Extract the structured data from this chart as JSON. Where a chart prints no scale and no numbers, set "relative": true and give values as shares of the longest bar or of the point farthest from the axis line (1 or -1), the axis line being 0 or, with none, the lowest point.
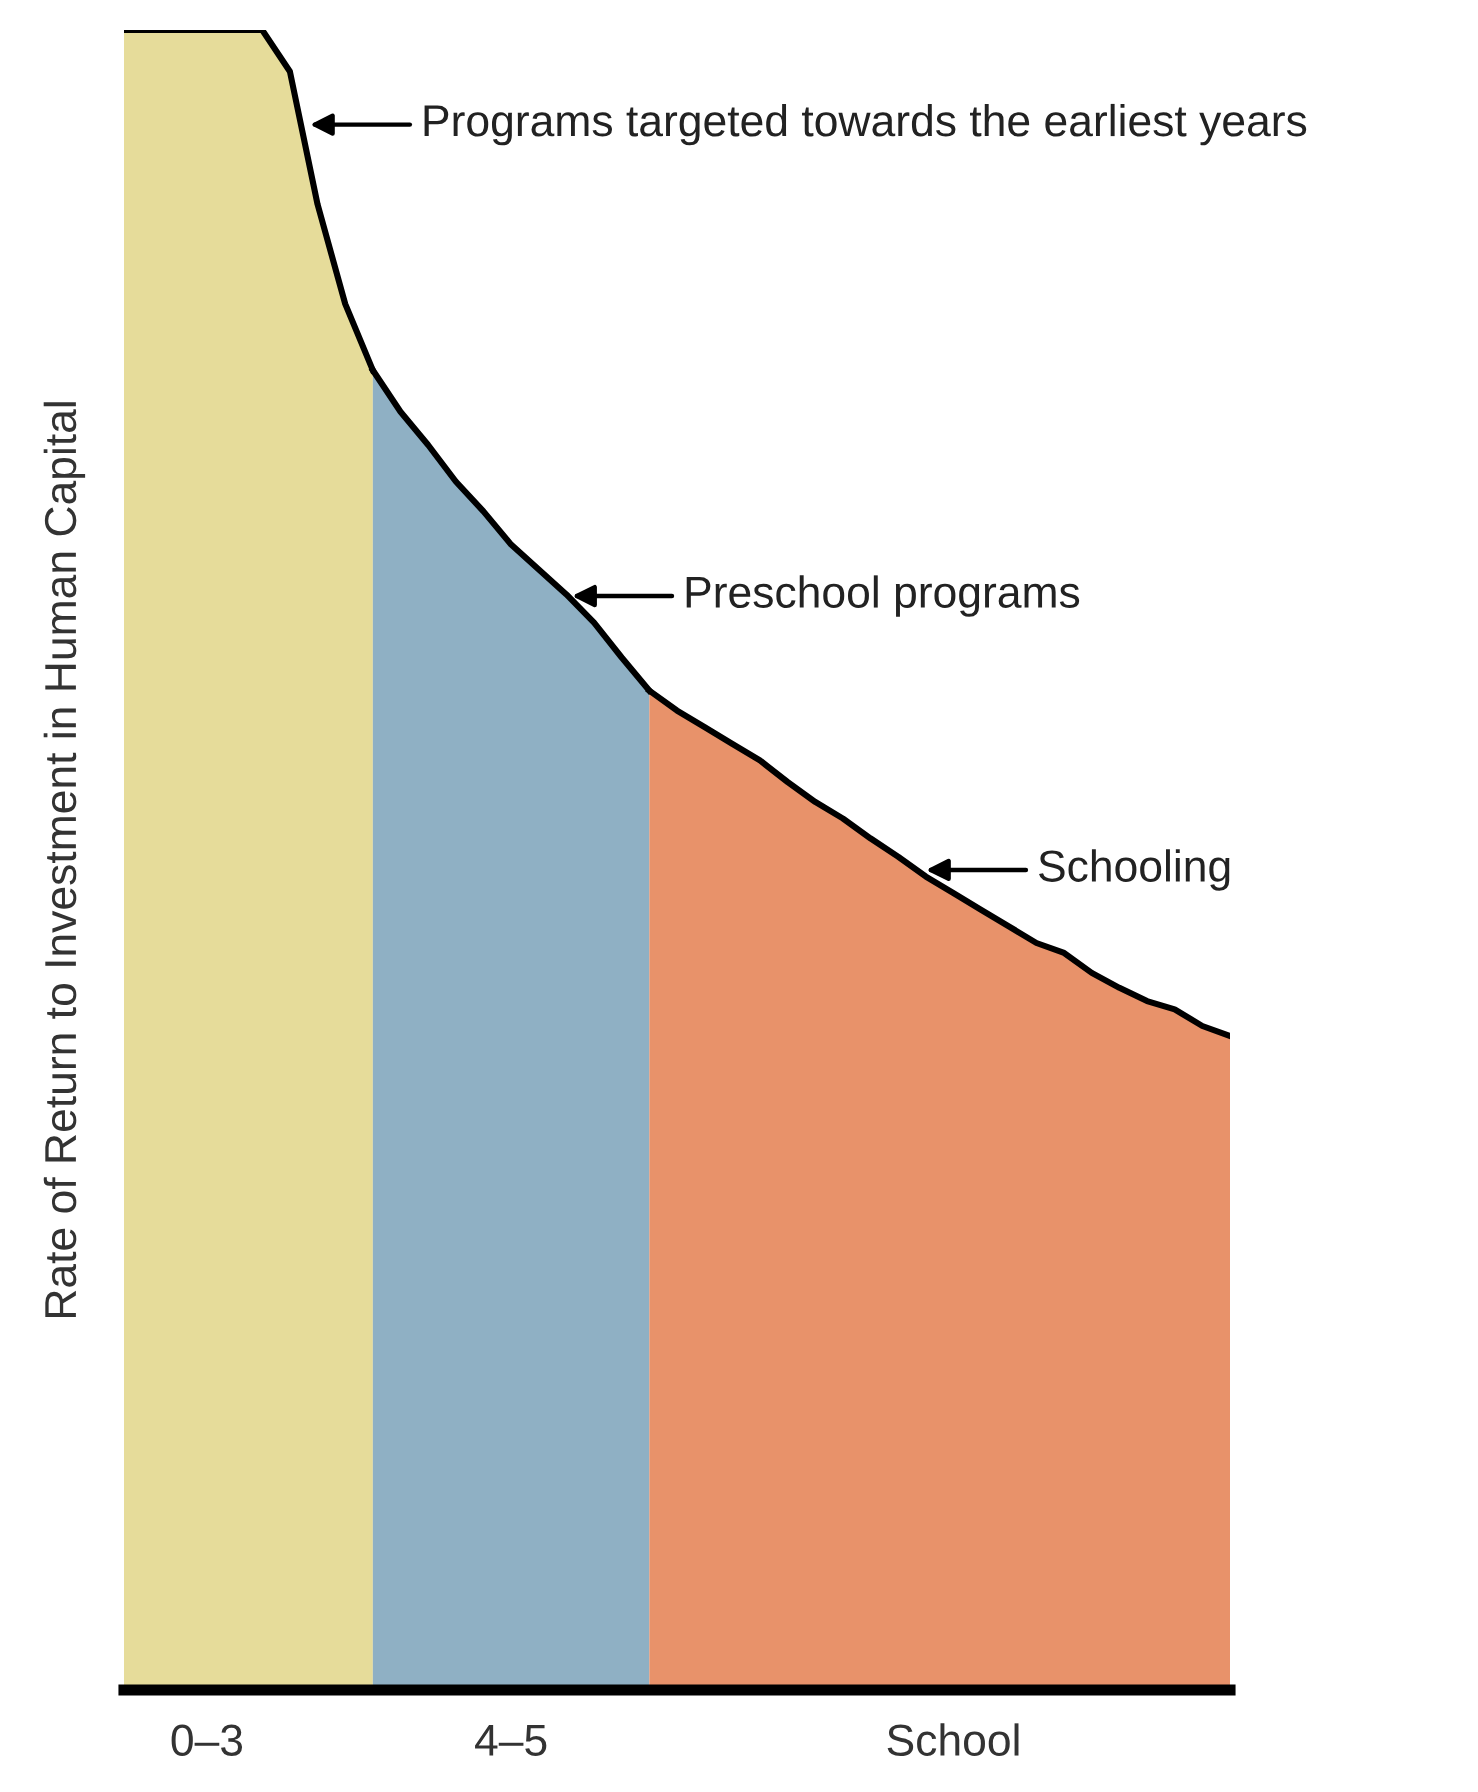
{
  "chart_data": {
    "type": "area",
    "relative": true,
    "ylabel": "Rate of Return to Investment in Human Capital",
    "categories": [
      null,
      null,
      null,
      "0–3",
      null,
      null,
      null,
      null,
      null,
      null,
      null,
      null,
      null,
      null,
      "4–5",
      null,
      null,
      null,
      null,
      null,
      null,
      null,
      null,
      null,
      null,
      null,
      null,
      null,
      null,
      null,
      "School",
      null,
      null,
      null,
      null,
      null,
      null,
      null,
      null,
      null,
      null
    ],
    "series": [
      {
        "color": "#e6dc9a",
        "values": [
          1,
          1,
          1,
          1,
          1,
          1,
          0.975,
          0.895,
          0.835,
          0.795,
          null,
          null,
          null,
          null,
          null,
          null,
          null,
          null,
          null,
          null,
          null,
          null,
          null,
          null,
          null,
          null,
          null,
          null,
          null,
          null,
          null,
          null,
          null,
          null,
          null,
          null,
          null,
          null,
          null,
          null,
          null
        ]
      },
      {
        "color": "#8fb0c4",
        "values": [
          null,
          null,
          null,
          null,
          null,
          null,
          null,
          null,
          null,
          0.795,
          0.77,
          0.75,
          0.728,
          0.71,
          0.69,
          0.675,
          0.66,
          0.643,
          0.622,
          0.602,
          null,
          null,
          null,
          null,
          null,
          null,
          null,
          null,
          null,
          null,
          null,
          null,
          null,
          null,
          null,
          null,
          null,
          null,
          null,
          null,
          null
        ]
      },
      {
        "color": "#e8926a",
        "values": [
          null,
          null,
          null,
          null,
          null,
          null,
          null,
          null,
          null,
          null,
          null,
          null,
          null,
          null,
          null,
          null,
          null,
          null,
          null,
          0.602,
          0.59,
          0.58,
          0.57,
          0.56,
          0.547,
          0.535,
          0.525,
          0.513,
          0.502,
          0.49,
          0.48,
          0.47,
          0.46,
          0.45,
          0.444,
          0.432,
          0.423,
          0.415,
          0.41,
          0.4,
          0.394
        ]
      }
    ],
    "annotations": [
      "Programs targeted towards the earliest years",
      "Preschool programs",
      "Schooling"
    ]
  }
}
